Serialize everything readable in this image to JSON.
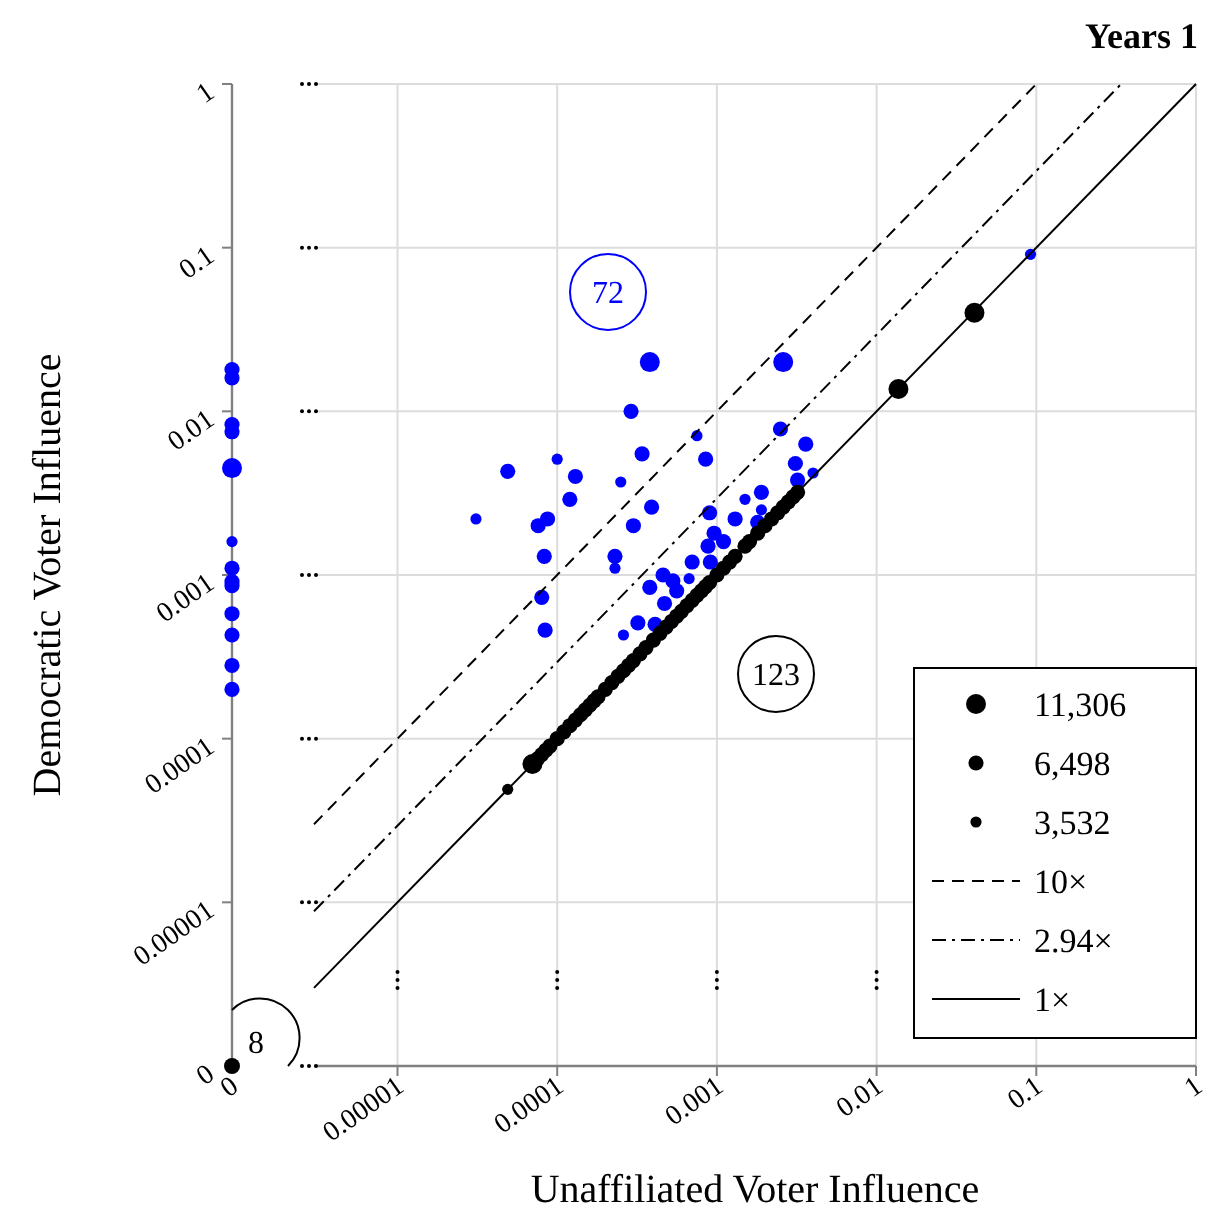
{
  "chart_data": [
    {
      "type": "bubble",
      "title": "Years 1",
      "xlabel": "Unaffiliated Voter Influence",
      "log": "xy",
      "grid": true,
      "legend": "bottom right",
      "tick_labels": "x",
      "xlim": [
        3e-06,
        1
      ],
      "ylim": [
        1e-06,
        1
      ],
      "xticks": [
        {
          "value": 1e-05,
          "label": "0.00001"
        },
        0.0001,
        0.001,
        0.01,
        0.1,
        1
      ],
      "yticks": [
        1e-05,
        0.0001,
        0.001,
        0.01,
        0.1,
        1
      ],
      "size_legend": [
        {
          "value": 11306,
          "label": "11,306"
        },
        {
          "value": 6498,
          "label": "6,498"
        },
        {
          "value": 3532,
          "label": "3,532"
        }
      ],
      "annotations": [
        "72",
        "123"
      ],
      "series": [
        {
          "color": "#0000ff",
          "x": [
            0.00038,
            0.0026,
            0.092,
            0.00029,
            0.0025,
            0.00075,
            0.00085,
            0.00034,
            0.0036,
            0.0031,
            0.0032,
            0.004,
            4.9e-05,
            0.0001,
            0.00013,
            0.00012,
            0.00025,
            3.1e-05,
            7.6e-05,
            8.7e-05,
            8.3e-05,
            0.00039,
            0.0003,
            0.00023,
            0.00023,
            0.0009,
            0.0013,
            0.0015,
            0.0019,
            0.0019,
            0.0018,
            0.00096,
            0.00088,
            0.0011,
            0.0007,
            0.00091,
            0.00046,
            0.00053,
            0.00038,
            0.00067,
            8e-05,
            8.4e-05,
            0.00026,
            0.00032,
            0.00041,
            0.00047,
            0.00056
          ],
          "values": [
            0.02,
            0.02,
            0.091,
            0.01,
            0.0078,
            0.0071,
            0.0051,
            0.0055,
            0.0063,
            0.0048,
            0.0038,
            0.0042,
            0.0043,
            0.0051,
            0.004,
            0.0029,
            0.0037,
            0.0022,
            0.002,
            0.0022,
            0.0013,
            0.0026,
            0.002,
            0.0013,
            0.0011,
            0.0024,
            0.0022,
            0.0029,
            0.0032,
            0.0025,
            0.0021,
            0.0018,
            0.0015,
            0.0016,
            0.0012,
            0.0012,
            0.001,
            0.00092,
            0.00084,
            0.00095,
            0.00073,
            0.00046,
            0.00043,
            0.00051,
            0.0005,
            0.00067,
            0.0008
          ],
          "sizes": [
            11306,
            11306,
            3532,
            6498,
            6498,
            3532,
            6498,
            6498,
            6498,
            6498,
            6498,
            3532,
            6498,
            3532,
            6498,
            6498,
            3532,
            3532,
            6498,
            6498,
            6498,
            6498,
            6498,
            6498,
            3532,
            6498,
            6498,
            3532,
            6498,
            3532,
            6498,
            6498,
            6498,
            6498,
            6498,
            6498,
            6498,
            6498,
            6498,
            3532,
            6498,
            6498,
            3532,
            6498,
            6498,
            6498,
            6498
          ]
        },
        {
          "color": "#000000",
          "x": [
            4.9e-05,
            7e-05,
            7.5e-05,
            8e-05,
            8.5e-05,
            9e-05,
            0.0001,
            0.00011,
            0.00012,
            0.00013,
            0.00014,
            0.00015,
            0.00016,
            0.00017,
            0.00018,
            0.0002,
            0.00022,
            0.00024,
            0.00026,
            0.00028,
            0.0003,
            0.00033,
            0.00036,
            0.0004,
            0.00044,
            0.00048,
            0.00052,
            0.00056,
            0.0006,
            0.00065,
            0.0007,
            0.00075,
            0.0008,
            0.00085,
            0.0009,
            0.001,
            0.0011,
            0.0012,
            0.0013,
            0.0015,
            0.0016,
            0.0018,
            0.002,
            0.0022,
            0.0024,
            0.0026,
            0.0028,
            0.003,
            0.0032,
            0.0137,
            0.041
          ],
          "values": [
            4.9e-05,
            7e-05,
            7.5e-05,
            8e-05,
            8.5e-05,
            9e-05,
            0.0001,
            0.00011,
            0.00012,
            0.00013,
            0.00014,
            0.00015,
            0.00016,
            0.00017,
            0.00018,
            0.0002,
            0.00022,
            0.00024,
            0.00026,
            0.00028,
            0.0003,
            0.00033,
            0.00036,
            0.0004,
            0.00044,
            0.00048,
            0.00052,
            0.00056,
            0.0006,
            0.00065,
            0.0007,
            0.00075,
            0.0008,
            0.00085,
            0.0009,
            0.001,
            0.0011,
            0.0012,
            0.0013,
            0.0015,
            0.0016,
            0.0018,
            0.002,
            0.0022,
            0.0024,
            0.0026,
            0.0028,
            0.003,
            0.0032,
            0.0137,
            0.04
          ],
          "sizes": [
            3532,
            11306,
            6498,
            6498,
            6498,
            6498,
            6498,
            6498,
            6498,
            6498,
            6498,
            6498,
            6498,
            6498,
            6498,
            6498,
            6498,
            6498,
            6498,
            6498,
            6498,
            6498,
            6498,
            6498,
            6498,
            6498,
            6498,
            6498,
            6498,
            6498,
            6498,
            6498,
            6498,
            6498,
            6498,
            6498,
            6498,
            6498,
            6498,
            6498,
            6498,
            6498,
            6498,
            6498,
            6498,
            6498,
            6498,
            6498,
            6498,
            11306,
            11306
          ]
        },
        {
          "type": "line",
          "name": "10×",
          "color": "#000000",
          "line_style": "dashed",
          "x": [
            3e-06,
            0.1
          ],
          "values": [
            3e-05,
            1
          ]
        },
        {
          "type": "line",
          "name": "2.94×",
          "color": "#000000",
          "line_style": "dashdot",
          "x": [
            3e-06,
            0.34
          ],
          "values": [
            8.82e-06,
            1
          ]
        },
        {
          "type": "line",
          "name": "1×",
          "color": "#000000",
          "line_style": "solid",
          "x": [
            3e-06,
            1
          ],
          "values": [
            3e-06,
            1
          ]
        }
      ]
    },
    {
      "type": "bubble",
      "ylabel": "Democratic Voter Influence",
      "log": "y",
      "categories": [
        "0"
      ],
      "ylim": [
        1e-06,
        1
      ],
      "yticks": [
        {
          "value": 1e-05,
          "label": "0.00001"
        },
        0.0001,
        0.001,
        0.01,
        0.1,
        1
      ],
      "series": [
        {
          "color": "#0000ff",
          "x": [
            "0",
            "0",
            "0",
            "0",
            "0",
            "0",
            "0",
            "0",
            "0",
            "0",
            "0",
            "0",
            "0"
          ],
          "values": [
            0.018,
            0.016,
            0.0083,
            0.0075,
            0.0045,
            0.0016,
            0.0011,
            0.00091,
            0.00086,
            0.00058,
            0.00043,
            0.00028,
            0.0002
          ],
          "sizes": [
            0.575,
            0.575,
            0.575,
            0.575,
            1,
            0.312,
            0.575,
            0.575,
            0.575,
            0.575,
            0.575,
            0.575,
            0.575
          ]
        }
      ]
    },
    {
      "type": "other",
      "annotations": [
        "0",
        "8"
      ]
    }
  ]
}
